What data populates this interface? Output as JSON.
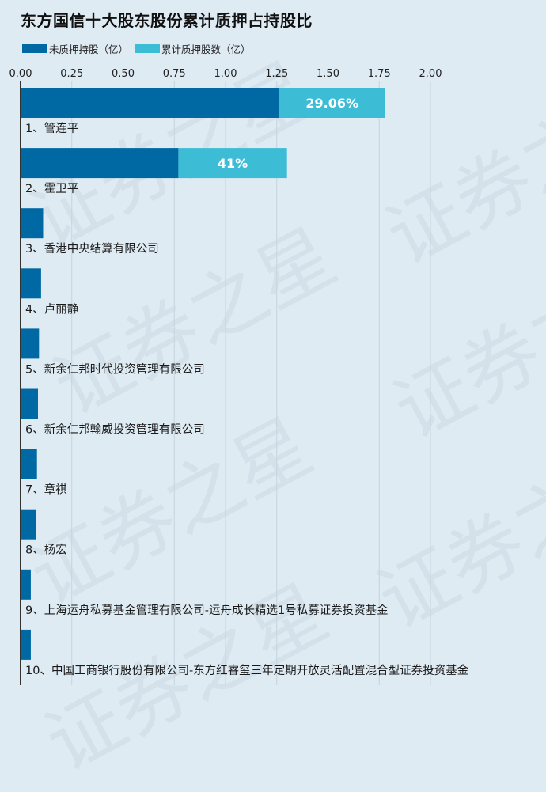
{
  "title": "东方国信十大股东股份累计质押占持股比",
  "legend": {
    "unpledged_label": "未质押持股（亿）",
    "pledged_label": "累计质押股数（亿）"
  },
  "colors": {
    "unpledged": "#0069a4",
    "pledged": "#3dbcd6",
    "axis": "#333333",
    "grid": "#c6d3dd"
  },
  "watermark_text": "证券之星",
  "chart_data": {
    "type": "bar",
    "orientation": "horizontal",
    "stacked": true,
    "title": "东方国信十大股东股份累计质押占持股比",
    "x_ticks": [
      "0.00",
      "0.25",
      "0.50",
      "0.75",
      "1.00",
      "1.25",
      "1.50",
      "1.75",
      "2.00"
    ],
    "xlim": [
      0,
      2.5
    ],
    "grid": true,
    "legend_position": "top-left",
    "categories": [
      "1、管连平",
      "2、霍卫平",
      "3、香港中央结算有限公司",
      "4、卢丽静",
      "5、新余仁邦时代投资管理有限公司",
      "6、新余仁邦翰威投资管理有限公司",
      "7、章祺",
      "8、杨宏",
      "9、上海运舟私募基金管理有限公司-运舟成长精选1号私募证券投资基金",
      "10、中国工商银行股份有限公司-东方红睿玺三年定期开放灵活配置混合型证券投资基金"
    ],
    "series": [
      {
        "name": "未质押持股（亿）",
        "values": [
          1.26,
          0.77,
          0.11,
          0.1,
          0.09,
          0.085,
          0.08,
          0.075,
          0.05,
          0.05
        ]
      },
      {
        "name": "累计质押股数（亿）",
        "values": [
          0.52,
          0.53,
          0,
          0,
          0,
          0,
          0,
          0,
          0,
          0
        ]
      }
    ],
    "pledge_ratio_labels": [
      "29.06%",
      "41%",
      "",
      "",
      "",
      "",
      "",
      "",
      "",
      ""
    ]
  }
}
